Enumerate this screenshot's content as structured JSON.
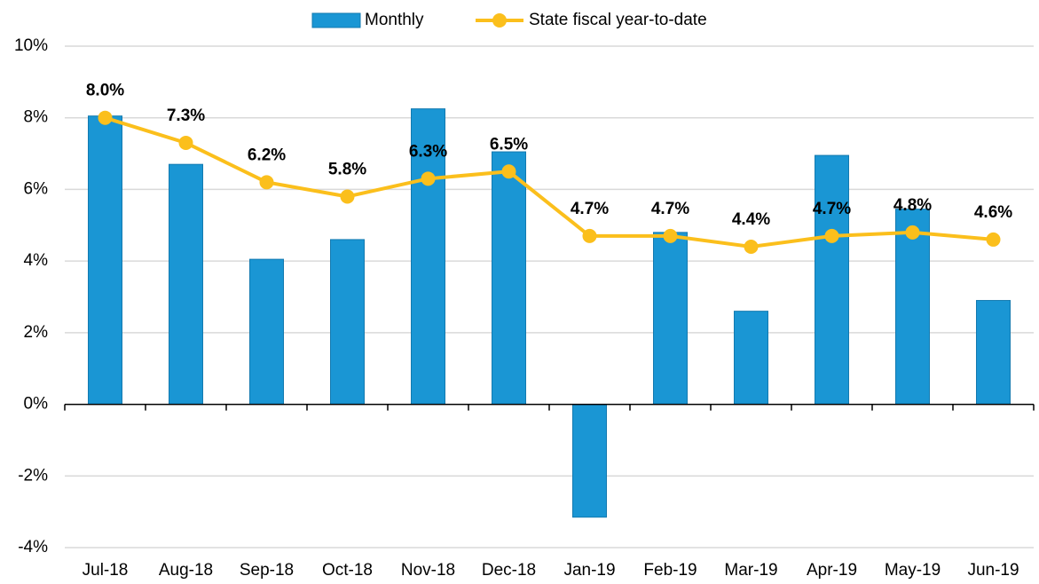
{
  "chart_data": {
    "type": "bar_line",
    "categories": [
      "Jul-18",
      "Aug-18",
      "Sep-18",
      "Oct-18",
      "Nov-18",
      "Dec-18",
      "Jan-19",
      "Feb-19",
      "Mar-19",
      "Apr-19",
      "May-19",
      "Jun-19"
    ],
    "series": [
      {
        "name": "Monthly",
        "type": "bar",
        "color": "#1a96d4",
        "values": [
          8.05,
          6.7,
          4.05,
          4.6,
          8.25,
          7.05,
          -3.15,
          4.8,
          2.6,
          6.95,
          5.45,
          2.9
        ]
      },
      {
        "name": "State fiscal year-to-date",
        "type": "line",
        "color": "#fbbf1c",
        "values": [
          8.0,
          7.3,
          6.2,
          5.8,
          6.3,
          6.5,
          4.7,
          4.7,
          4.4,
          4.7,
          4.8,
          4.6
        ],
        "value_labels": [
          "8.0%",
          "7.3%",
          "6.2%",
          "5.8%",
          "6.3%",
          "6.5%",
          "4.7%",
          "4.7%",
          "4.4%",
          "4.7%",
          "4.8%",
          "4.6%"
        ]
      }
    ],
    "ylim": [
      -4,
      10
    ],
    "yticks": [
      {
        "value": -4,
        "label": "-4%"
      },
      {
        "value": -2,
        "label": "-2%"
      },
      {
        "value": 0,
        "label": "0%"
      },
      {
        "value": 2,
        "label": "2%"
      },
      {
        "value": 4,
        "label": "4%"
      },
      {
        "value": 6,
        "label": "6%"
      },
      {
        "value": 8,
        "label": "8%"
      },
      {
        "value": 10,
        "label": "10%"
      }
    ],
    "grid": true,
    "legend": "top"
  }
}
